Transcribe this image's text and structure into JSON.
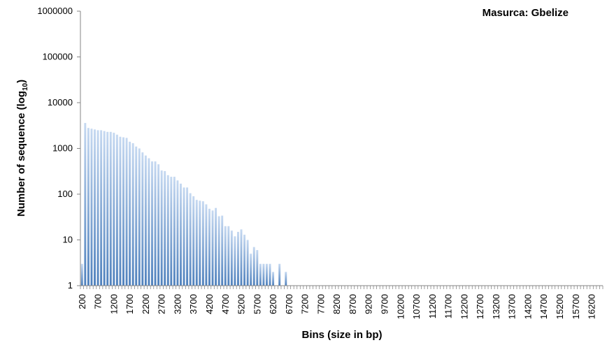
{
  "chart_data": {
    "type": "bar",
    "title": "Masurca: Gbelize",
    "xlabel": "Bins (size in bp)",
    "ylabel": "Number of sequence (log",
    "ylabel_sub": "10",
    "ylabel_close": ")",
    "yscale": "log",
    "ylim": [
      1,
      1000000
    ],
    "yticks": [
      "1",
      "10",
      "100",
      "1000",
      "10000",
      "100000",
      "1000000"
    ],
    "xticks": [
      "200",
      "700",
      "1200",
      "1700",
      "2200",
      "2700",
      "3200",
      "3700",
      "4200",
      "4700",
      "5200",
      "5700",
      "6200",
      "6700",
      "7200",
      "7700",
      "8200",
      "8700",
      "9200",
      "9700",
      "10200",
      "10700",
      "11200",
      "11700",
      "12200",
      "12700",
      "13200",
      "13700",
      "14200",
      "14700",
      "15200",
      "15700",
      "16200"
    ],
    "x_start": 200,
    "x_step": 100,
    "grid": false,
    "legend": "none",
    "bar_color": "#4f81bd",
    "values": [
      3,
      3600,
      2800,
      2700,
      2600,
      2500,
      2500,
      2400,
      2300,
      2300,
      2200,
      2000,
      1800,
      1750,
      1700,
      1400,
      1300,
      1100,
      1000,
      820,
      700,
      610,
      520,
      520,
      450,
      330,
      320,
      260,
      240,
      240,
      200,
      170,
      140,
      140,
      105,
      90,
      75,
      72,
      70,
      60,
      48,
      44,
      50,
      33,
      34,
      20,
      20,
      16,
      12,
      15,
      17,
      13,
      10,
      5,
      7,
      6,
      3,
      3,
      3,
      3,
      2,
      1,
      3,
      1,
      2,
      1,
      1,
      1,
      1,
      1,
      1,
      1,
      1,
      1,
      1,
      1,
      1,
      1,
      1,
      1,
      1,
      1,
      1,
      1,
      1,
      1,
      1,
      1,
      1,
      1,
      1,
      1,
      1,
      1,
      1,
      1,
      1,
      1,
      1,
      1,
      1,
      1,
      1,
      1,
      1,
      1,
      1,
      1,
      1,
      1,
      1,
      1,
      1,
      1,
      1,
      1,
      1,
      1,
      1,
      1,
      1,
      1,
      1,
      1,
      1,
      1,
      1,
      1,
      1,
      1,
      1,
      1,
      1,
      1,
      1,
      1,
      1,
      1,
      1,
      1,
      1,
      1,
      1,
      1,
      1,
      1,
      1,
      1,
      1,
      1,
      1,
      1,
      1,
      1,
      1,
      1,
      1,
      1,
      1,
      1,
      1,
      1,
      1,
      1
    ]
  }
}
